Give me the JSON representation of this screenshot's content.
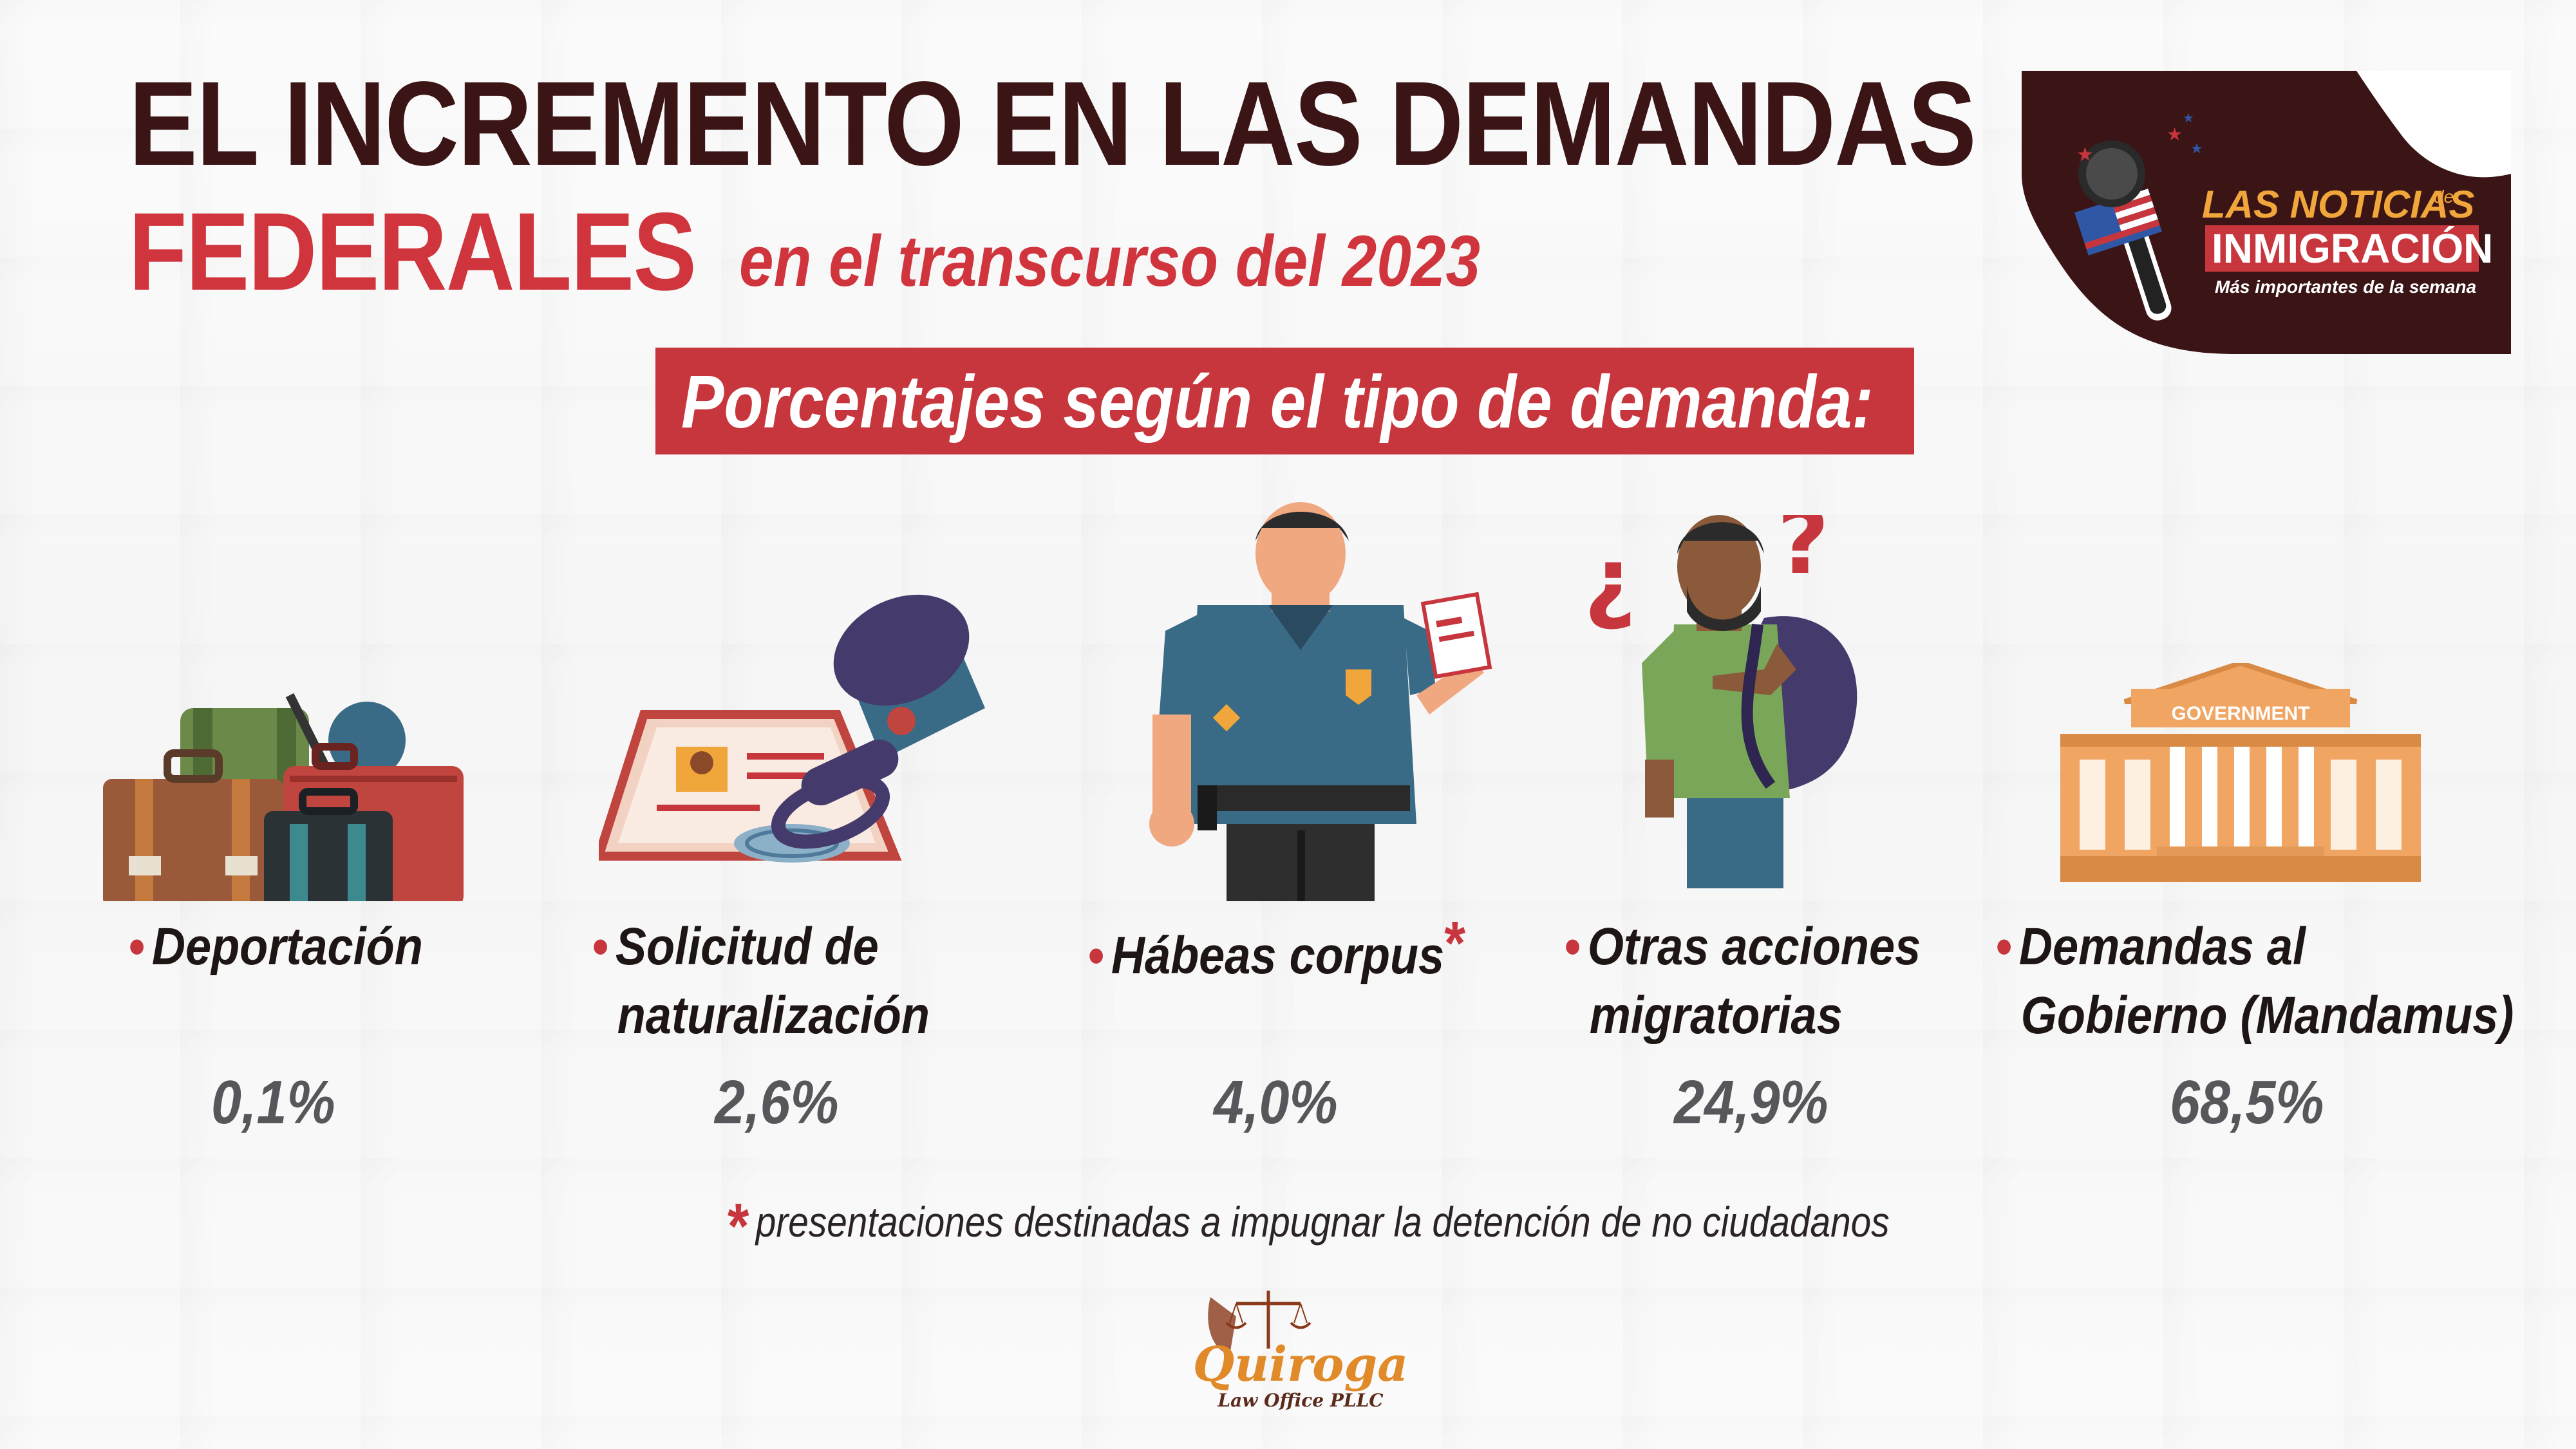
{
  "title": {
    "line1": "EL INCREMENTO EN LAS DEMANDAS",
    "line2_strong": "FEDERALES",
    "line2_rest": "en el transcurso del 2023"
  },
  "banner": "Porcentajes según el tipo de demanda:",
  "logo": {
    "line1a": "LAS NOTICIAS",
    "line1b": "de",
    "line2": "INMIGRACIÓN",
    "line3": "Más importantes de la semana"
  },
  "categories": [
    {
      "label1": "Deportación",
      "label2": "",
      "value": "0,1%",
      "icon": "luggage-icon"
    },
    {
      "label1": "Solicitud de",
      "label2": "naturalización",
      "value": "2,6%",
      "icon": "stamp-document-icon"
    },
    {
      "label1": "Hábeas corpus",
      "label2": "",
      "value": "4,0%",
      "icon": "officer-icon",
      "mark": "*"
    },
    {
      "label1": "Otras acciones",
      "label2": "migratorias",
      "value": "24,9%",
      "icon": "migrant-icon"
    },
    {
      "label1": "Demandas al",
      "label2": "Gobierno (Mandamus)",
      "value": "68,5%",
      "icon": "government-building-icon",
      "building_sign": "GOVERNMENT"
    }
  ],
  "footnote": {
    "mark": "*",
    "text": "presentaciones destinadas a impugnar la detención de no ciudadanos"
  },
  "brand": {
    "name": "Quiroga",
    "sub": "Law Office PLLC"
  },
  "colors": {
    "dark": "#3b1415",
    "red": "#c7363d",
    "gray": "#57575b"
  }
}
